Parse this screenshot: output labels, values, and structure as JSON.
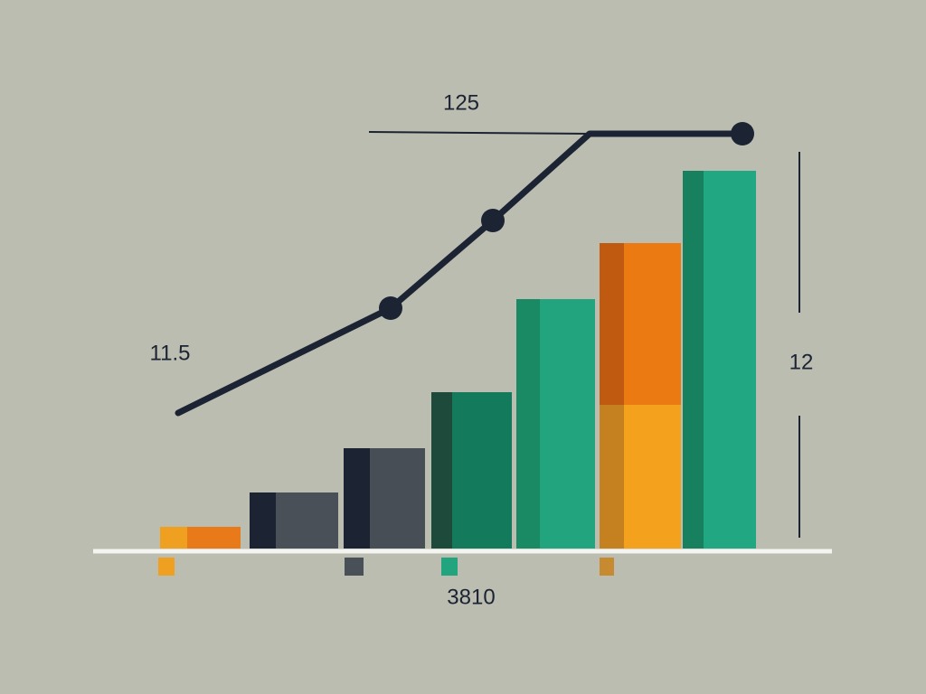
{
  "labels": {
    "top": "125",
    "left": "11.5",
    "right": "12",
    "bottom": "3810"
  }
}
